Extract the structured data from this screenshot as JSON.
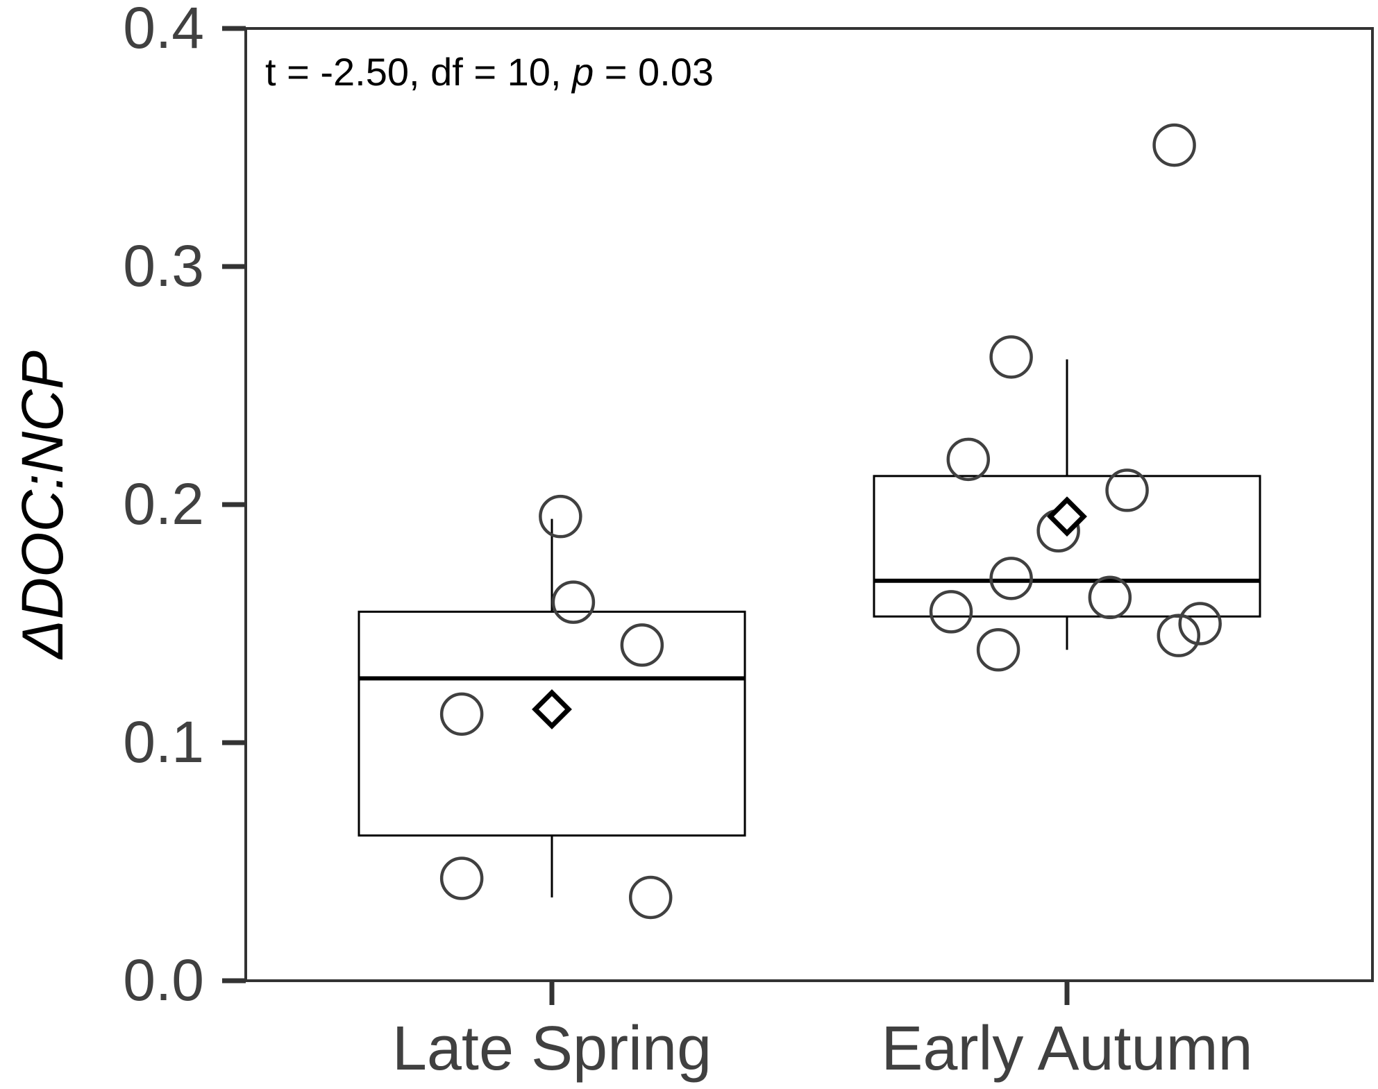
{
  "chart_data": {
    "type": "box",
    "ylabel": "ΔDOC:NCP",
    "ylim": [
      0.0,
      0.4
    ],
    "yticks": [
      0.0,
      0.1,
      0.2,
      0.3,
      0.4
    ],
    "ytick_labels": [
      "0.0",
      "0.1",
      "0.2",
      "0.3",
      "0.4"
    ],
    "grid": false,
    "annotation": {
      "prefix": "t = -2.50, df = 10, ",
      "p_symbol": "p",
      "suffix": " = 0.03"
    },
    "categories": [
      "Late Spring",
      "Early Autumn"
    ],
    "boxes": [
      {
        "category": "Late Spring",
        "whisker_low": 0.035,
        "q1": 0.061,
        "median": 0.127,
        "q3": 0.155,
        "whisker_high": 0.194,
        "mean": 0.114,
        "points": [
          0.195,
          0.159,
          0.141,
          0.112,
          0.043,
          0.035
        ],
        "jitter": [
          0.02,
          0.05,
          0.21,
          -0.21,
          -0.21,
          0.23
        ]
      },
      {
        "category": "Early Autumn",
        "whisker_low": 0.139,
        "q1": 0.153,
        "median": 0.168,
        "q3": 0.212,
        "whisker_high": 0.261,
        "mean": 0.195,
        "points": [
          0.351,
          0.262,
          0.219,
          0.206,
          0.189,
          0.169,
          0.161,
          0.155,
          0.15,
          0.145,
          0.139
        ],
        "jitter": [
          0.25,
          -0.13,
          -0.23,
          0.14,
          -0.02,
          -0.13,
          0.1,
          -0.27,
          0.31,
          0.26,
          -0.16
        ]
      }
    ],
    "colors": {
      "points": "#404040",
      "box": "#000000",
      "axis": "#333333",
      "mean_marker": "#000000"
    }
  }
}
